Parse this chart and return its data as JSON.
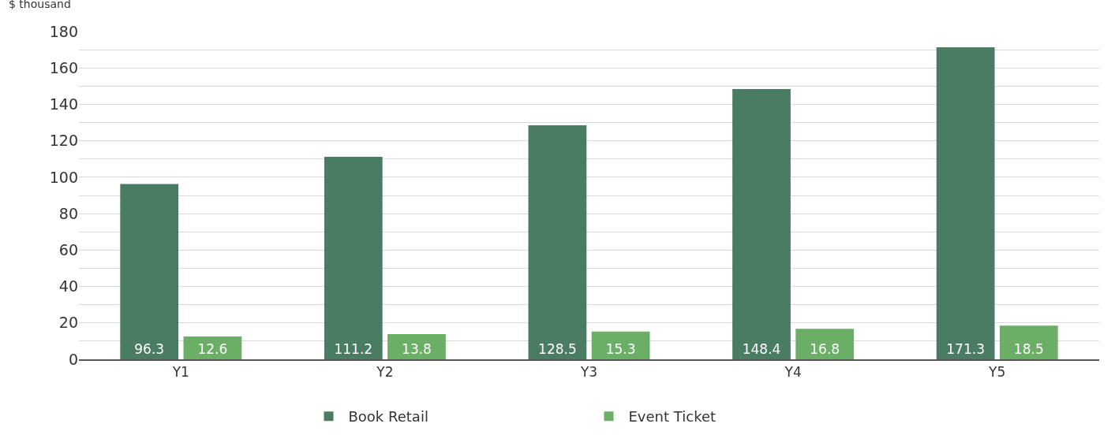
{
  "chart_data": {
    "type": "bar",
    "ylabel": "$ thousand",
    "categories": [
      "Y1",
      "Y2",
      "Y3",
      "Y4",
      "Y5"
    ],
    "series": [
      {
        "name": "Book Retail",
        "color": "#4a7c63",
        "values": [
          96.3,
          111.2,
          128.5,
          148.4,
          171.3
        ]
      },
      {
        "name": "Event Ticket",
        "color": "#6aaf65",
        "values": [
          12.6,
          13.8,
          15.3,
          16.8,
          18.5
        ]
      }
    ],
    "ylim": [
      0,
      180
    ],
    "yticks": [
      0,
      {
        "value": 10,
        "label": null
      },
      20,
      {
        "value": 30,
        "label": null
      },
      40,
      {
        "value": 50,
        "label": null
      },
      60,
      {
        "value": 70,
        "label": null
      },
      80,
      {
        "value": 90,
        "label": null
      },
      100,
      {
        "value": 110,
        "label": null
      },
      120,
      {
        "value": 130,
        "label": null
      },
      140,
      {
        "value": 150,
        "label": null
      },
      160,
      {
        "value": 170,
        "label": null
      },
      180
    ],
    "grid": "y",
    "legend": "bottom",
    "data_labels": true
  }
}
